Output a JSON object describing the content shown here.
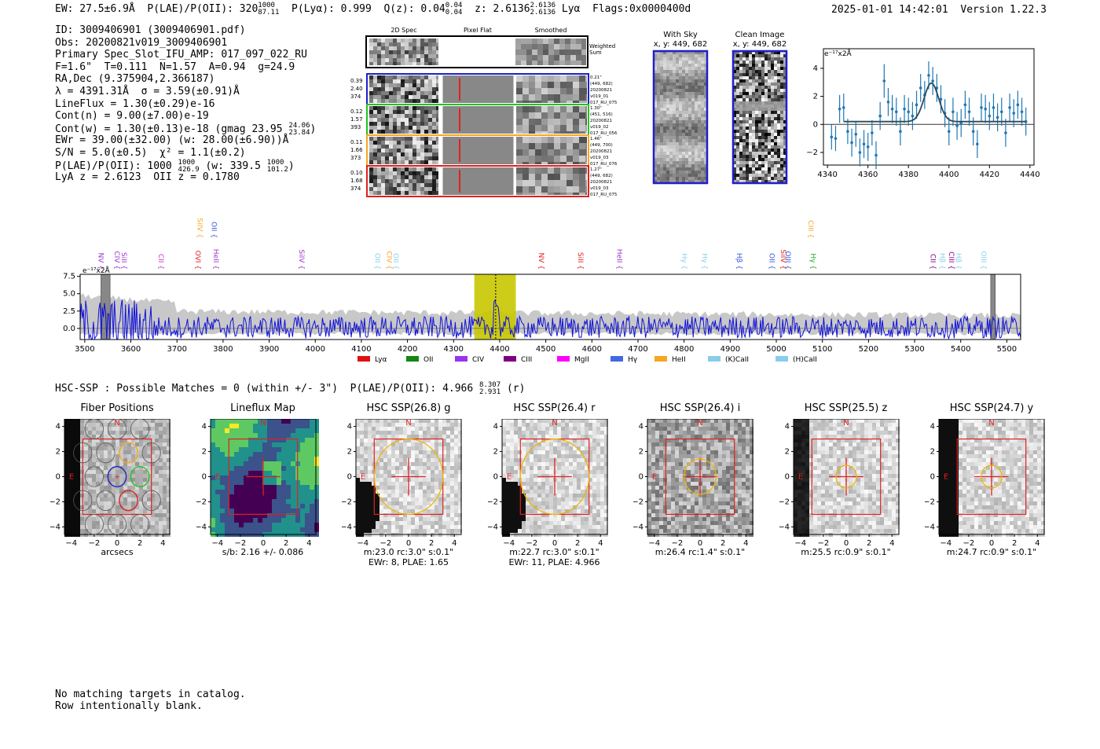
{
  "header": {
    "left": "EW: 27.5±6.9Å  P(LAE)/P(OII): 320 1000/87.11  P(Lyα): 0.999  Q(z): 0.04 0.04/0.04  z: 2.6136 2.6136/2.6136 Lyα  Flags:0x0000400d",
    "ew": "EW: 27.5±6.9Å",
    "plae": "P(LAE)/P(OII): 320",
    "plae_hi": "1000",
    "plae_lo": "87.11",
    "plya": "P(Lyα): 0.999",
    "qz": "Q(z): 0.04",
    "qz_hi": "0.04",
    "qz_lo": "0.04",
    "z": "z: 2.6136",
    "z_hi": "2.6136",
    "z_lo": "2.6136",
    "z_line": "Lyα",
    "flags": "Flags:0x0000400d",
    "timestamp": "2025-01-01 14:42:01",
    "version": "Version 1.22.3"
  },
  "details": {
    "id": "ID: 3009406901 (3009406901.pdf)",
    "obs": "Obs: 20200821v019_3009406901",
    "primary": "Primary Spec_Slot_IFU_AMP: 017_097_022_RU",
    "fiber": "F=1.6\"  T=0.111  N=1.57  A=0.94  g=24.9",
    "radec": "RA,Dec (9.375904,2.366187)",
    "lambda": "λ = 4391.31Å  σ = 3.59(±0.91)Å",
    "lineflux": "LineFlux = 1.30(±0.29)e-16",
    "contn": "Cont(n) = 9.00(±7.00)e-19",
    "contw": "Cont(w) = 1.30(±0.13)e-18 (gmag 23.95",
    "contw_hi": "24.06",
    "contw_lo": "23.84",
    "contw_end": ")",
    "ewr": "EWr = 39.00(±32.00) (w: 28.00(±6.90))Å",
    "sn": "S/N = 5.0(±0.5)  χ² = 1.1(±0.2)",
    "plae2": "P(LAE)/P(OII): 1000",
    "plae2_hi": "1000",
    "plae2_lo": "426.9",
    "plae2_w": "(w: 339.5",
    "plae2_w_hi": "1000",
    "plae2_w_lo": "101.2",
    "plae2_end": ")",
    "lyaz": "LyA z = 2.6123  OII z = 0.1780"
  },
  "fiber_panel": {
    "headers": [
      "2D Spec",
      "Pixel Flat",
      "Smoothed"
    ],
    "weighted_label": "Weighted Sum",
    "rows": [
      {
        "left": [
          "0.39",
          "2.40",
          "374"
        ],
        "right": [
          "0.21\"",
          "(449, 682)",
          "20200821",
          "v019_01",
          "017_RU_075"
        ],
        "color": "#1f1fcc"
      },
      {
        "left": [
          "0.12",
          "1.57",
          "393"
        ],
        "right": [
          "1.30\"",
          "(451, 516)",
          "20200821",
          "v019_02",
          "017_RU_056"
        ],
        "color": "#22c422"
      },
      {
        "left": [
          "0.11",
          "1.66",
          "373"
        ],
        "right": [
          "1.46\"",
          "(449, 700)",
          "20200821",
          "v019_03",
          "017_RU_076"
        ],
        "color": "#f5a623"
      },
      {
        "left": [
          "0.10",
          "1.68",
          "374"
        ],
        "right": [
          "1.27\"",
          "(449, 682)",
          "20200821",
          "v019_03",
          "017_RU_075"
        ],
        "color": "#e02020"
      }
    ]
  },
  "sky_panels": {
    "with_sky": {
      "title": "With Sky",
      "coords": "x, y: 449, 682"
    },
    "clean": {
      "title": "Clean Image",
      "coords": "x, y: 449, 682"
    }
  },
  "chart_data": [
    {
      "type": "scatter",
      "name": "line-fit",
      "ylabel": "e⁻¹⁷x2Å",
      "xlim": [
        4338,
        4442
      ],
      "ylim": [
        -2.9,
        5.4
      ],
      "xticks": [
        4340,
        4360,
        4380,
        4400,
        4420,
        4440
      ],
      "yticks": [
        -2,
        0,
        2,
        4
      ],
      "color": "#1f77b4",
      "points": [
        [
          4342,
          -0.9,
          0.9
        ],
        [
          4344,
          -1.0,
          0.9
        ],
        [
          4346,
          1.1,
          1.0
        ],
        [
          4348,
          1.2,
          1.0
        ],
        [
          4350,
          -0.5,
          0.9
        ],
        [
          4352,
          -1.3,
          1.0
        ],
        [
          4354,
          -0.7,
          0.9
        ],
        [
          4356,
          -2.0,
          1.0
        ],
        [
          4358,
          -1.4,
          1.0
        ],
        [
          4360,
          -1.6,
          1.0
        ],
        [
          4362,
          -0.6,
          0.9
        ],
        [
          4364,
          -2.2,
          1.0
        ],
        [
          4366,
          0.6,
          1.0
        ],
        [
          4368,
          3.1,
          1.2
        ],
        [
          4370,
          1.6,
          1.0
        ],
        [
          4372,
          1.1,
          1.0
        ],
        [
          4374,
          0.9,
          1.0
        ],
        [
          4376,
          -0.5,
          1.0
        ],
        [
          4378,
          1.1,
          1.0
        ],
        [
          4380,
          0.9,
          1.0
        ],
        [
          4382,
          0.6,
          1.0
        ],
        [
          4384,
          1.4,
          1.0
        ],
        [
          4386,
          2.6,
          1.0
        ],
        [
          4388,
          2.1,
          1.0
        ],
        [
          4390,
          3.5,
          1.0
        ],
        [
          4392,
          3.1,
          1.0
        ],
        [
          4394,
          2.6,
          1.0
        ],
        [
          4396,
          1.8,
          1.0
        ],
        [
          4398,
          0.8,
          1.0
        ],
        [
          4400,
          -0.5,
          1.0
        ],
        [
          4402,
          0.9,
          1.0
        ],
        [
          4404,
          -0.1,
          1.0
        ],
        [
          4406,
          0.1,
          1.0
        ],
        [
          4408,
          1.4,
          1.0
        ],
        [
          4410,
          0.9,
          1.0
        ],
        [
          4412,
          -0.5,
          1.0
        ],
        [
          4414,
          -1.4,
          1.0
        ],
        [
          4416,
          1.2,
          1.0
        ],
        [
          4418,
          1.1,
          1.0
        ],
        [
          4420,
          0.6,
          1.0
        ],
        [
          4422,
          1.2,
          1.0
        ],
        [
          4424,
          0.5,
          1.0
        ],
        [
          4426,
          0.9,
          1.0
        ],
        [
          4428,
          -0.6,
          1.0
        ],
        [
          4430,
          1.2,
          1.0
        ],
        [
          4432,
          0.8,
          1.0
        ],
        [
          4434,
          1.4,
          1.0
        ],
        [
          4436,
          0.9,
          1.0
        ],
        [
          4438,
          0.2,
          1.0
        ]
      ],
      "fit": {
        "center": 4391.31,
        "sigma": 3.59,
        "amplitude": 2.75,
        "baseline": 0.2,
        "range": [
          4348,
          4438
        ]
      }
    },
    {
      "type": "line",
      "name": "full-spectrum",
      "ylabel": "e⁻¹⁷x2Å",
      "xlim": [
        3490,
        5530
      ],
      "ylim": [
        -1.6,
        7.8
      ],
      "xticks": [
        3500,
        3600,
        3700,
        3800,
        3900,
        4000,
        4100,
        4200,
        4300,
        4400,
        4500,
        4600,
        4700,
        4800,
        4900,
        5000,
        5100,
        5200,
        5300,
        5400,
        5500
      ],
      "yticks": [
        0.0,
        2.5,
        5.0,
        7.5
      ],
      "yticklabels": [
        "0.0",
        "2.5",
        "5.0",
        "7.5"
      ],
      "highlight": [
        4345,
        4435
      ],
      "peak": 4391.31,
      "masked": [
        [
          3535,
          3555
        ],
        [
          5465,
          5475
        ]
      ],
      "line_markers": [
        {
          "label": "NV",
          "x": 3525,
          "color": "#9933cc",
          "level": 1
        },
        {
          "label": "CIV",
          "x": 3560,
          "color": "#9933cc",
          "level": 1
        },
        {
          "label": "SiII",
          "x": 3575,
          "color": "#9933cc",
          "level": 1
        },
        {
          "label": "CII",
          "x": 3655,
          "color": "#cc33cc",
          "level": 1
        },
        {
          "label": "OVI",
          "x": 3735,
          "color": "#e02020",
          "level": 1
        },
        {
          "label": "SiIV",
          "x": 3740,
          "color": "#f5a623",
          "level": 0
        },
        {
          "label": "OII",
          "x": 3770,
          "color": "#3355dd",
          "level": 0
        },
        {
          "label": "HeII",
          "x": 3775,
          "color": "#9933cc",
          "level": 1
        },
        {
          "label": "SiIV",
          "x": 3960,
          "color": "#9933cc",
          "level": 1
        },
        {
          "label": "OII",
          "x": 4125,
          "color": "#87ceeb",
          "level": 1
        },
        {
          "label": "CIV",
          "x": 4150,
          "color": "#f5a623",
          "level": 1
        },
        {
          "label": "OII",
          "x": 4165,
          "color": "#87ceeb",
          "level": 1
        },
        {
          "label": "NV",
          "x": 4480,
          "color": "#e02020",
          "level": 1
        },
        {
          "label": "SiII",
          "x": 4565,
          "color": "#e02020",
          "level": 1
        },
        {
          "label": "HeII",
          "x": 4650,
          "color": "#9933cc",
          "level": 1
        },
        {
          "label": "Hγ",
          "x": 4790,
          "color": "#87ceeb",
          "level": 1
        },
        {
          "label": "Hγ",
          "x": 4835,
          "color": "#87ceeb",
          "level": 1
        },
        {
          "label": "Hβ",
          "x": 4910,
          "color": "#3355dd",
          "level": 1
        },
        {
          "label": "OII",
          "x": 4980,
          "color": "#3355dd",
          "level": 1
        },
        {
          "label": "SiIV",
          "x": 5005,
          "color": "#e02020",
          "level": 1
        },
        {
          "label": "OIII",
          "x": 5015,
          "color": "#3355dd",
          "level": 1
        },
        {
          "label": "Hγ",
          "x": 5070,
          "color": "#22aa22",
          "level": 1
        },
        {
          "label": "CIII",
          "x": 5065,
          "color": "#f5a623",
          "level": 0
        },
        {
          "label": "CII",
          "x": 5330,
          "color": "#8b008b",
          "level": 1
        },
        {
          "label": "Hβ",
          "x": 5350,
          "color": "#87ceeb",
          "level": 1
        },
        {
          "label": "CIII",
          "x": 5370,
          "color": "#8b008b",
          "level": 1
        },
        {
          "label": "Hβ",
          "x": 5385,
          "color": "#87ceeb",
          "level": 1
        },
        {
          "label": "OIII",
          "x": 5440,
          "color": "#87ceeb",
          "level": 1
        }
      ],
      "legend": [
        {
          "label": "Lyα",
          "color": "#e01010"
        },
        {
          "label": "OII",
          "color": "#118811"
        },
        {
          "label": "CIV",
          "color": "#9933ee"
        },
        {
          "label": "CIII",
          "color": "#800080"
        },
        {
          "label": "MgII",
          "color": "#ff00ff"
        },
        {
          "label": "Hγ",
          "color": "#4169e1"
        },
        {
          "label": "HeII",
          "color": "#f5a623"
        },
        {
          "label": "(K)CaII",
          "color": "#87ceeb"
        },
        {
          "label": "(H)CaII",
          "color": "#87ceeb"
        }
      ]
    }
  ],
  "hsc_line": "HSC-SSP : Possible Matches = 0 (within +/- 3\")  P(LAE)/P(OII): 4.966",
  "hsc_hi": "8.307",
  "hsc_lo": "2.931",
  "hsc_end": "(r)",
  "cutouts": [
    {
      "title": "Fiber Positions",
      "caption": [
        "arcsecs"
      ],
      "kind": "fiber"
    },
    {
      "title": "Lineflux Map",
      "caption": [
        "s/b: 2.16 +/- 0.086"
      ],
      "kind": "flux"
    },
    {
      "title": "HSC SSP(26.8) g",
      "caption": [
        "m:23.0 rc:3.0\"  s:0.1\"",
        "EWr: 8, PLAE: 1.65"
      ],
      "kind": "hsc",
      "aperture": 3.0
    },
    {
      "title": "HSC SSP(26.4) r",
      "caption": [
        "m:22.7 rc:3.0\"  s:0.1\"",
        "EWr: 11, PLAE: 4.966"
      ],
      "kind": "hsc",
      "aperture": 3.0
    },
    {
      "title": "HSC SSP(26.4) i",
      "caption": [
        "m:26.4 rc:1.4\"  s:0.1\""
      ],
      "kind": "hsc",
      "aperture": 1.4
    },
    {
      "title": "HSC SSP(25.5) z",
      "caption": [
        "m:25.5 rc:0.9\"  s:0.1\""
      ],
      "kind": "hsc",
      "aperture": 0.9
    },
    {
      "title": "HSC SSP(24.7) y",
      "caption": [
        "m:24.7 rc:0.9\"  s:0.1\""
      ],
      "kind": "hsc",
      "aperture": 0.9
    }
  ],
  "cutout_axis": {
    "ticks": [
      -4,
      -2,
      0,
      2,
      4
    ],
    "north": "N",
    "east": "E"
  },
  "footer": [
    "No matching targets in catalog.",
    "Row intentionally blank."
  ]
}
